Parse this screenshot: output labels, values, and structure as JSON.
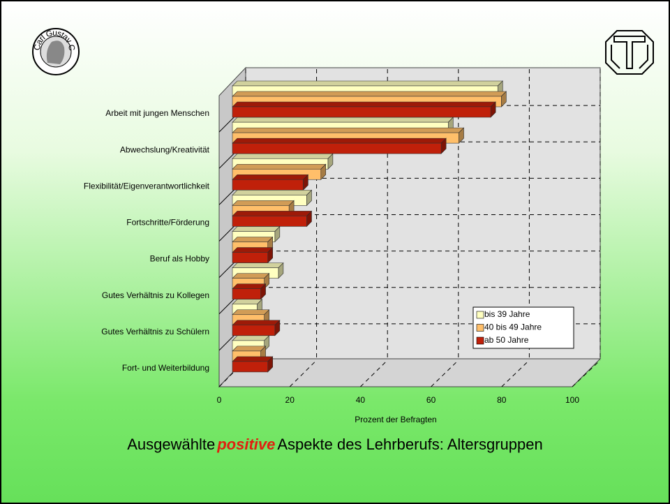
{
  "chart_data": {
    "type": "bar",
    "orientation": "horizontal",
    "logo_text": "Carl Gustav Carus",
    "title_parts": [
      "Ausgewählte",
      "positive",
      "Aspekte des Lehrberufs: Altersgruppen"
    ],
    "x_label": "Prozent der Befragten",
    "categories": [
      "Arbeit mit jungen Menschen",
      "Abwechslung/Kreativität",
      "Flexibilität/Eigenverantwortlichkeit",
      "Fortschritte/Förderung",
      "Beruf als Hobby",
      "Gutes Verhältnis zu Kollegen",
      "Gutes Verhältnis zu Schülern",
      "Fort- und Weiterbildung"
    ],
    "series": [
      {
        "name": "bis 39 Jahre",
        "color": "#ffffc0",
        "values": [
          75,
          61,
          27,
          21,
          12,
          13,
          7,
          9
        ]
      },
      {
        "name": "40 bis 49 Jahre",
        "color": "#ffbf6a",
        "values": [
          76,
          64,
          25,
          16,
          10,
          9,
          9,
          8
        ]
      },
      {
        "name": "ab 50 Jahre",
        "color": "#c0200a",
        "values": [
          73,
          59,
          20,
          21,
          10,
          8,
          12,
          10
        ]
      }
    ],
    "xlim": [
      0,
      100
    ],
    "xticks": [
      0,
      20,
      40,
      60,
      80,
      100
    ],
    "grid": true,
    "legend": "lower right"
  }
}
